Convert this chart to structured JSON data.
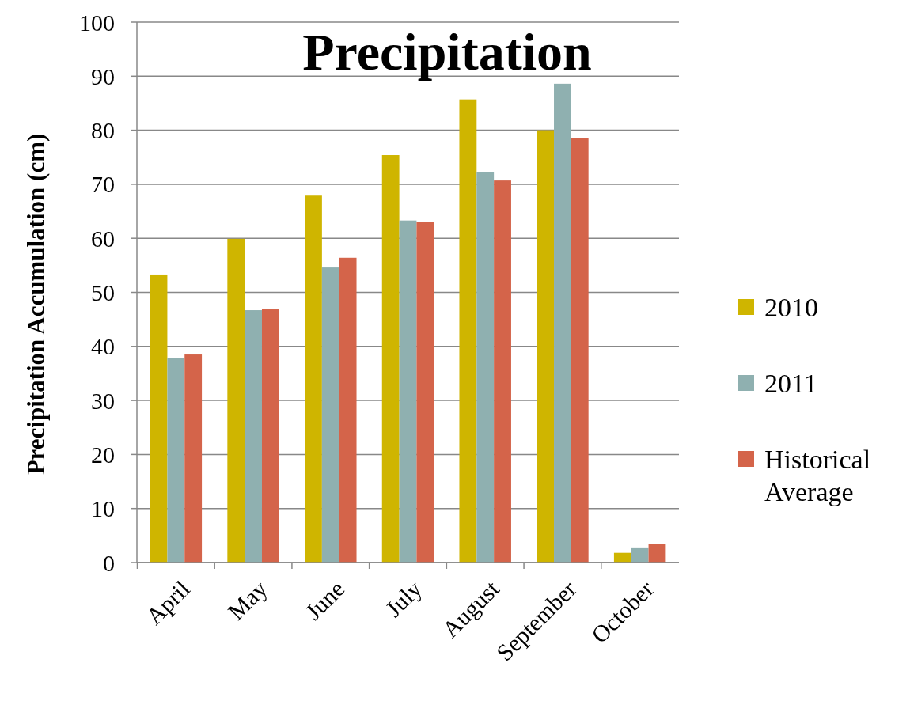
{
  "chart_data": {
    "type": "bar",
    "title": "Precipitation",
    "ylabel": "Precipitation Accumulation (cm)",
    "categories": [
      "April",
      "May",
      "June",
      "July",
      "August",
      "September",
      "October"
    ],
    "series": [
      {
        "name": "2010",
        "color": "#cfb500",
        "values": [
          53.3,
          59.9,
          67.9,
          75.4,
          85.7,
          80.0,
          1.8
        ]
      },
      {
        "name": "2011",
        "color": "#8fb0b0",
        "values": [
          37.8,
          46.7,
          54.6,
          63.3,
          72.3,
          88.6,
          2.8
        ]
      },
      {
        "name": "Historical Average",
        "color": "#d4644a",
        "values": [
          38.5,
          46.9,
          56.4,
          63.1,
          70.7,
          78.5,
          3.4
        ]
      }
    ],
    "ylim": [
      0,
      100
    ],
    "yticks": [
      0,
      10,
      20,
      30,
      40,
      50,
      60,
      70,
      80,
      90,
      100
    ],
    "grid": "y",
    "legend": "right"
  }
}
